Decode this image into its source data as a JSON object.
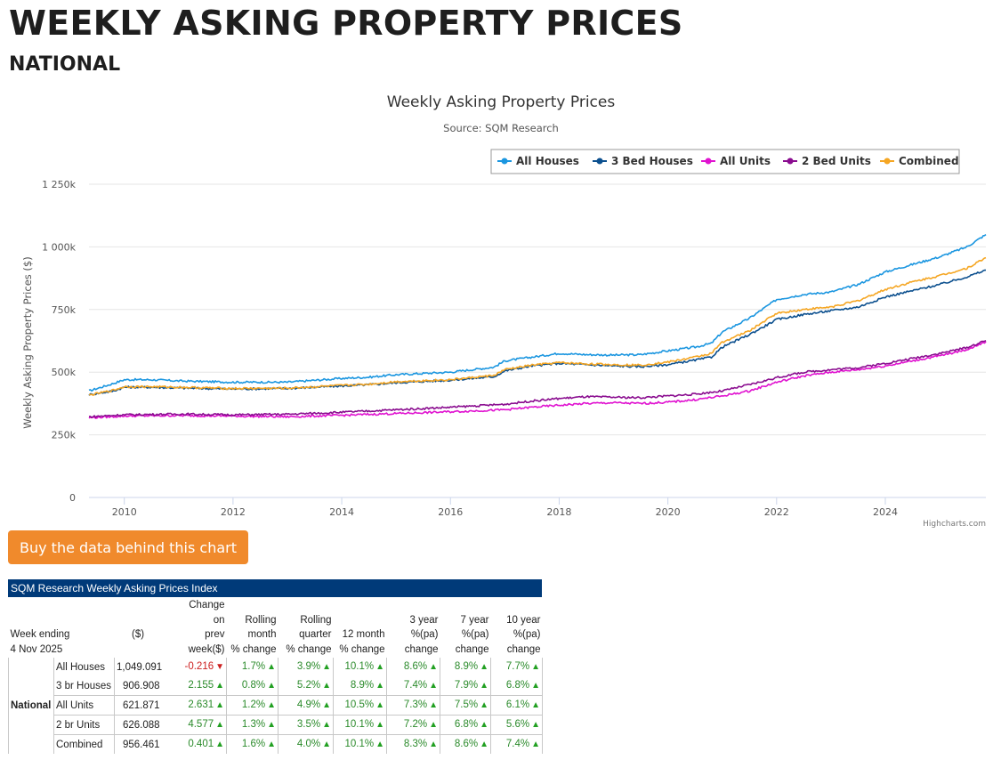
{
  "page": {
    "title": "WEEKLY ASKING PROPERTY PRICES",
    "subtitle": "NATIONAL"
  },
  "chart_data": {
    "type": "line",
    "title": "Weekly Asking Property Prices",
    "subtitle": "Source: SQM Research",
    "ylabel": "Weekly Asking Property Prices ($)",
    "xlabel": "",
    "credit": "Highcharts.com",
    "legend_position": "top-right",
    "x_range": [
      2009.35,
      2025.85
    ],
    "ylim": [
      0,
      1250000
    ],
    "y_ticks": [
      {
        "value": 0,
        "label": "0"
      },
      {
        "value": 250000,
        "label": "250k"
      },
      {
        "value": 500000,
        "label": "500k"
      },
      {
        "value": 750000,
        "label": "750k"
      },
      {
        "value": 1000000,
        "label": "1 000k"
      },
      {
        "value": 1250000,
        "label": "1 250k"
      }
    ],
    "x_ticks": [
      {
        "value": 2010,
        "label": "2010"
      },
      {
        "value": 2012,
        "label": "2012"
      },
      {
        "value": 2014,
        "label": "2014"
      },
      {
        "value": 2016,
        "label": "2016"
      },
      {
        "value": 2018,
        "label": "2018"
      },
      {
        "value": 2020,
        "label": "2020"
      },
      {
        "value": 2022,
        "label": "2022"
      },
      {
        "value": 2024,
        "label": "2024"
      }
    ],
    "series": [
      {
        "name": "All Houses",
        "color": "#1b96e0",
        "x": [
          2009.35,
          2009.8,
          2010.0,
          2010.5,
          2011.0,
          2012.0,
          2013.0,
          2014.0,
          2014.5,
          2015.0,
          2016.0,
          2016.8,
          2017.0,
          2017.5,
          2018.0,
          2018.5,
          2019.0,
          2019.5,
          2020.0,
          2020.5,
          2020.8,
          2021.0,
          2021.5,
          2022.0,
          2022.5,
          2023.0,
          2023.5,
          2024.0,
          2024.5,
          2025.0,
          2025.5,
          2025.85
        ],
        "values": [
          425000,
          455000,
          470000,
          470000,
          465000,
          460000,
          460000,
          475000,
          480000,
          490000,
          500000,
          520000,
          545000,
          560000,
          575000,
          570000,
          568000,
          570000,
          585000,
          600000,
          615000,
          660000,
          715000,
          790000,
          810000,
          820000,
          850000,
          900000,
          930000,
          960000,
          1000000,
          1049091
        ]
      },
      {
        "name": "3 Bed Houses",
        "color": "#0b4f8e",
        "x": [
          2009.35,
          2009.8,
          2010.0,
          2010.5,
          2011.0,
          2012.0,
          2013.0,
          2014.0,
          2014.5,
          2015.0,
          2016.0,
          2016.8,
          2017.0,
          2017.5,
          2018.0,
          2018.5,
          2019.0,
          2019.5,
          2020.0,
          2020.5,
          2020.8,
          2021.0,
          2021.5,
          2022.0,
          2022.5,
          2023.0,
          2023.5,
          2024.0,
          2024.5,
          2025.0,
          2025.5,
          2025.85
        ],
        "values": [
          410000,
          425000,
          440000,
          440000,
          437000,
          433000,
          435000,
          445000,
          450000,
          458000,
          468000,
          482000,
          505000,
          525000,
          535000,
          530000,
          525000,
          522000,
          530000,
          548000,
          560000,
          600000,
          650000,
          710000,
          730000,
          745000,
          760000,
          800000,
          825000,
          850000,
          880000,
          906908
        ]
      },
      {
        "name": "All Units",
        "color": "#e012d0",
        "x": [
          2009.35,
          2010.0,
          2011.0,
          2012.0,
          2013.0,
          2014.0,
          2015.0,
          2016.0,
          2017.0,
          2017.5,
          2018.0,
          2018.5,
          2019.0,
          2019.5,
          2020.0,
          2020.5,
          2021.0,
          2021.5,
          2022.0,
          2022.5,
          2023.0,
          2023.5,
          2024.0,
          2024.5,
          2025.0,
          2025.5,
          2025.85
        ],
        "values": [
          318000,
          325000,
          327000,
          325000,
          322000,
          328000,
          335000,
          342000,
          350000,
          360000,
          368000,
          375000,
          378000,
          375000,
          380000,
          390000,
          405000,
          425000,
          460000,
          485000,
          500000,
          510000,
          525000,
          545000,
          565000,
          590000,
          621871
        ]
      },
      {
        "name": "2 Bed Units",
        "color": "#8a0c8f",
        "x": [
          2009.35,
          2010.0,
          2011.0,
          2012.0,
          2013.0,
          2014.0,
          2015.0,
          2016.0,
          2017.0,
          2017.5,
          2018.0,
          2018.5,
          2019.0,
          2019.5,
          2020.0,
          2020.5,
          2021.0,
          2021.5,
          2022.0,
          2022.5,
          2023.0,
          2023.5,
          2024.0,
          2024.5,
          2025.0,
          2025.5,
          2025.85
        ],
        "values": [
          322000,
          330000,
          333000,
          330000,
          332000,
          340000,
          350000,
          360000,
          372000,
          385000,
          395000,
          402000,
          400000,
          398000,
          405000,
          412000,
          425000,
          450000,
          478000,
          500000,
          510000,
          518000,
          535000,
          555000,
          575000,
          598000,
          626088
        ]
      },
      {
        "name": "Combined",
        "color": "#f5a623",
        "x": [
          2009.35,
          2009.8,
          2010.0,
          2010.5,
          2011.0,
          2012.0,
          2013.0,
          2014.0,
          2014.5,
          2015.0,
          2016.0,
          2016.8,
          2017.0,
          2017.5,
          2018.0,
          2018.5,
          2019.0,
          2019.5,
          2020.0,
          2020.5,
          2020.8,
          2021.0,
          2021.5,
          2022.0,
          2022.5,
          2023.0,
          2023.5,
          2024.0,
          2024.5,
          2025.0,
          2025.5,
          2025.85
        ],
        "values": [
          408000,
          428000,
          442000,
          442000,
          440000,
          435000,
          436000,
          447000,
          452000,
          462000,
          470000,
          487000,
          510000,
          528000,
          538000,
          533000,
          530000,
          528000,
          540000,
          560000,
          575000,
          620000,
          665000,
          735000,
          750000,
          760000,
          785000,
          830000,
          860000,
          885000,
          915000,
          956461
        ]
      }
    ]
  },
  "buy_button": {
    "label": "Buy the data behind this chart"
  },
  "table": {
    "title": "SQM Research Weekly Asking Prices Index",
    "headers": {
      "week_ending": "Week ending",
      "date": "4 Nov 2025",
      "price": "($)",
      "change_prev": [
        "Change",
        "on",
        "prev",
        "week($)"
      ],
      "rolling_month": [
        "Rolling",
        "month",
        "% change"
      ],
      "rolling_quarter": [
        "Rolling",
        "quarter",
        "% change"
      ],
      "twelve_month": [
        "12 month",
        "% change"
      ],
      "three_year": [
        "3 year",
        "%(pa)",
        "change"
      ],
      "seven_year": [
        "7 year",
        "%(pa)",
        "change"
      ],
      "ten_year": [
        "10 year",
        "%(pa)",
        "change"
      ]
    },
    "region": "National",
    "rows": [
      {
        "type": "All Houses",
        "price": "1,049.091",
        "chg": "-0.216",
        "chg_dir": "down",
        "month": "1.7%",
        "quarter": "3.9%",
        "m12": "10.1%",
        "y3": "8.6%",
        "y7": "8.9%",
        "y10": "7.7%"
      },
      {
        "type": "3 br Houses",
        "price": "906.908",
        "chg": "2.155",
        "chg_dir": "up",
        "month": "0.8%",
        "quarter": "5.2%",
        "m12": "8.9%",
        "y3": "7.4%",
        "y7": "7.9%",
        "y10": "6.8%"
      },
      {
        "type": "All Units",
        "price": "621.871",
        "chg": "2.631",
        "chg_dir": "up",
        "month": "1.2%",
        "quarter": "4.9%",
        "m12": "10.5%",
        "y3": "7.3%",
        "y7": "7.5%",
        "y10": "6.1%"
      },
      {
        "type": "2 br Units",
        "price": "626.088",
        "chg": "4.577",
        "chg_dir": "up",
        "month": "1.3%",
        "quarter": "3.5%",
        "m12": "10.1%",
        "y3": "7.2%",
        "y7": "6.8%",
        "y10": "5.6%"
      },
      {
        "type": "Combined",
        "price": "956.461",
        "chg": "0.401",
        "chg_dir": "up",
        "month": "1.6%",
        "quarter": "4.0%",
        "m12": "10.1%",
        "y3": "8.3%",
        "y7": "8.6%",
        "y10": "7.4%"
      }
    ]
  }
}
